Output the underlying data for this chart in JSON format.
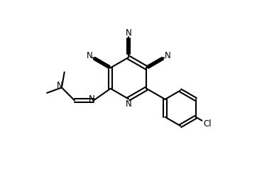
{
  "background_color": "#ffffff",
  "line_color": "#000000",
  "line_width": 1.5,
  "figsize": [
    3.62,
    2.38
  ],
  "dpi": 100,
  "xlim": [
    0,
    10
  ],
  "ylim": [
    0,
    6.6
  ]
}
